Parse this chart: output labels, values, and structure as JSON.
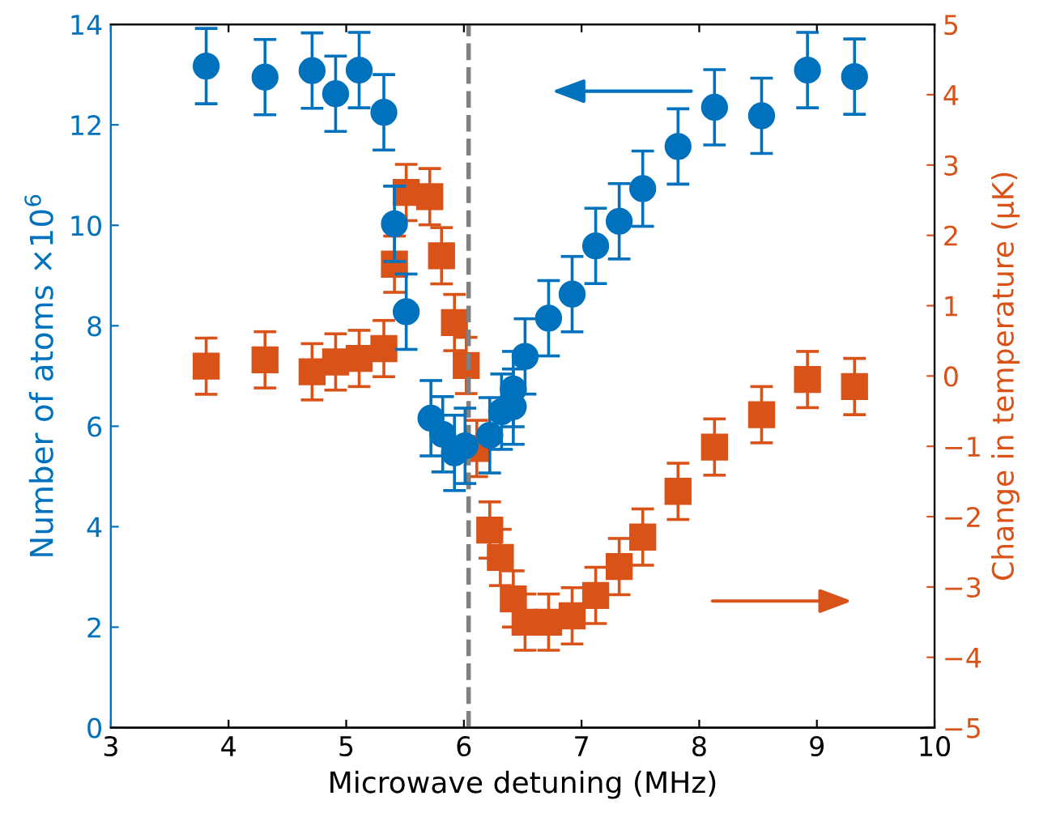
{
  "chart_data": {
    "type": "scatter",
    "xlabel": "Microwave detuning (MHz)",
    "ylabel": "Number of atoms ×10$^{6}$",
    "y2label": "Change in temperature (μK)",
    "xlim": [
      3,
      10
    ],
    "xticks": [
      3,
      4,
      5,
      6,
      7,
      8,
      9,
      10
    ],
    "ylim": [
      0,
      14
    ],
    "yticks": [
      0,
      2,
      4,
      6,
      8,
      10,
      12,
      14
    ],
    "y2lim": [
      -5,
      5
    ],
    "y2ticks": [
      -5,
      -4,
      -3,
      -2,
      -1,
      0,
      1,
      2,
      3,
      4,
      5
    ],
    "grid": false,
    "legend": false,
    "ref_lines": [
      {
        "axis": "x",
        "value": 6.04,
        "color": "#808080",
        "line_style": "dashed"
      }
    ],
    "series": [
      {
        "color": "#0072bd",
        "marker": "circle",
        "axis": "y",
        "x": [
          3.81,
          4.31,
          4.71,
          4.91,
          5.11,
          5.32,
          5.41,
          5.51,
          5.72,
          5.82,
          5.92,
          6.01,
          6.22,
          6.32,
          6.42,
          6.42,
          6.52,
          6.72,
          6.92,
          7.12,
          7.32,
          7.52,
          7.82,
          8.13,
          8.53,
          8.92,
          9.32
        ],
        "values": [
          13.17,
          12.95,
          13.08,
          12.62,
          13.09,
          12.25,
          10.03,
          8.28,
          6.16,
          5.84,
          5.47,
          5.61,
          5.82,
          6.29,
          6.39,
          6.74,
          7.39,
          8.15,
          8.63,
          9.59,
          10.08,
          10.73,
          11.57,
          12.35,
          12.18,
          13.09,
          12.96
        ],
        "errors": [
          0.75,
          0.75,
          0.75,
          0.75,
          0.75,
          0.75,
          0.75,
          0.75,
          0.75,
          0.75,
          0.75,
          0.75,
          0.75,
          0.75,
          0.75,
          0.75,
          0.75,
          0.75,
          0.75,
          0.75,
          0.75,
          0.75,
          0.75,
          0.75,
          0.75,
          0.75,
          0.75
        ]
      },
      {
        "color": "#d95319",
        "marker": "square",
        "axis": "y2",
        "x": [
          3.81,
          4.31,
          4.71,
          4.91,
          5.11,
          5.32,
          5.41,
          5.51,
          5.71,
          5.81,
          5.92,
          6.02,
          6.11,
          6.22,
          6.31,
          6.42,
          6.52,
          6.72,
          6.92,
          7.12,
          7.32,
          7.52,
          7.82,
          8.13,
          8.53,
          8.92,
          9.32
        ],
        "values": [
          0.14,
          0.23,
          0.06,
          0.2,
          0.25,
          0.39,
          1.59,
          2.61,
          2.55,
          1.71,
          0.76,
          0.15,
          -1.03,
          -2.19,
          -2.58,
          -3.17,
          -3.5,
          -3.5,
          -3.41,
          -3.12,
          -2.71,
          -2.29,
          -1.64,
          -1.01,
          -0.55,
          -0.05,
          -0.15
        ],
        "errors": [
          0.4,
          0.4,
          0.4,
          0.4,
          0.4,
          0.4,
          0.4,
          0.4,
          0.4,
          0.4,
          0.4,
          0.4,
          0.4,
          0.4,
          0.4,
          0.4,
          0.4,
          0.4,
          0.4,
          0.4,
          0.4,
          0.4,
          0.4,
          0.4,
          0.4,
          0.4,
          0.4
        ]
      }
    ]
  }
}
